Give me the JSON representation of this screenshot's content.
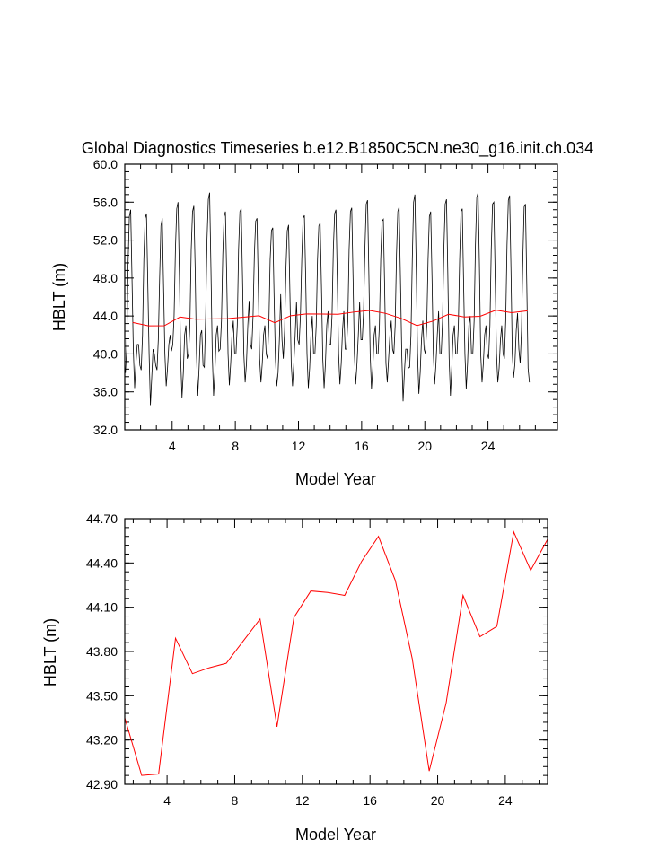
{
  "chart_data": [
    {
      "type": "line",
      "title": "Global Diagnostics Timeseries b.e12.B1850C5CN.ne30_g16.init.ch.034",
      "xlabel": "Model Year",
      "ylabel": "HBLT (m)",
      "xlim": [
        1,
        28.4
      ],
      "ylim": [
        32.0,
        60.0
      ],
      "xticks": [
        "4",
        "8",
        "12",
        "16",
        "20",
        "24"
      ],
      "xtick_values": [
        4,
        8,
        12,
        16,
        20,
        24
      ],
      "yticks": [
        "32.0",
        "36.0",
        "40.0",
        "44.0",
        "48.0",
        "52.0",
        "56.0",
        "60.0"
      ],
      "ytick_values": [
        32,
        36,
        40,
        44,
        48,
        52,
        56,
        60
      ],
      "grid": false,
      "series": [
        {
          "color": "#000000",
          "kind": "monthly",
          "start_year": 1.04,
          "step": 0.0833333,
          "values": [
            38.0,
            40.5,
            49.5,
            54.5,
            55.2,
            48.0,
            40.5,
            36.4,
            39.0,
            41.0,
            41.0,
            38.8,
            38.3,
            42.0,
            50.0,
            54.3,
            54.8,
            47.5,
            40.0,
            34.6,
            37.5,
            40.5,
            40.0,
            38.8,
            38.3,
            41.5,
            48.0,
            53.5,
            54.3,
            47.0,
            40.0,
            36.6,
            38.5,
            41.0,
            42.0,
            40.3,
            41.0,
            44.0,
            51.0,
            55.3,
            56.0,
            48.5,
            39.5,
            35.4,
            38.0,
            42.0,
            43.0,
            39.5,
            40.0,
            43.0,
            51.0,
            55.0,
            55.6,
            49.0,
            40.0,
            35.6,
            38.5,
            42.0,
            42.5,
            38.8,
            38.6,
            44.0,
            52.0,
            56.3,
            57.0,
            49.0,
            40.0,
            35.6,
            38.0,
            42.0,
            43.0,
            40.3,
            40.5,
            43.5,
            50.5,
            54.5,
            55.0,
            48.0,
            40.0,
            36.7,
            39.0,
            42.0,
            43.5,
            40.0,
            40.0,
            43.0,
            51.0,
            55.0,
            55.3,
            48.0,
            40.0,
            37.0,
            39.0,
            43.0,
            45.6,
            41.0,
            40.5,
            44.0,
            50.5,
            54.0,
            54.3,
            47.0,
            39.5,
            37.0,
            39.0,
            42.0,
            43.0,
            40.0,
            39.5,
            43.0,
            50.0,
            53.0,
            53.3,
            46.0,
            39.5,
            36.6,
            38.0,
            41.5,
            46.3,
            41.5,
            39.5,
            42.5,
            49.0,
            53.0,
            53.6,
            46.5,
            39.0,
            36.6,
            39.0,
            42.0,
            45.5,
            41.5,
            41.0,
            44.0,
            50.0,
            54.3,
            54.6,
            48.0,
            40.0,
            36.4,
            38.5,
            42.0,
            44.0,
            40.0,
            40.0,
            43.0,
            50.0,
            53.5,
            53.8,
            47.0,
            39.5,
            36.4,
            39.0,
            43.0,
            44.5,
            41.0,
            41.0,
            44.0,
            51.0,
            54.8,
            55.2,
            48.0,
            40.0,
            36.8,
            39.0,
            42.5,
            44.5,
            40.5,
            40.5,
            43.5,
            51.0,
            55.0,
            55.4,
            48.0,
            40.0,
            36.8,
            39.0,
            42.0,
            45.5,
            41.5,
            41.5,
            44.5,
            51.0,
            55.8,
            56.2,
            48.5,
            40.0,
            36.3,
            38.5,
            42.0,
            43.0,
            40.0,
            40.0,
            43.0,
            50.0,
            54.0,
            54.2,
            47.0,
            39.0,
            37.0,
            39.5,
            42.0,
            43.5,
            40.5,
            40.0,
            43.0,
            50.5,
            55.0,
            55.5,
            48.0,
            40.0,
            35.0,
            38.0,
            40.5,
            40.5,
            38.5,
            38.6,
            42.0,
            50.0,
            56.0,
            56.8,
            49.0,
            40.0,
            35.8,
            38.0,
            41.5,
            43.5,
            40.5,
            40.0,
            43.0,
            50.0,
            54.5,
            55.0,
            48.0,
            40.0,
            36.8,
            39.0,
            42.0,
            44.5,
            40.0,
            40.0,
            43.5,
            51.0,
            55.8,
            56.3,
            48.5,
            39.5,
            35.6,
            38.5,
            42.0,
            43.0,
            40.0,
            40.0,
            43.0,
            50.0,
            55.0,
            55.3,
            47.5,
            40.0,
            36.3,
            39.0,
            43.0,
            44.0,
            40.0,
            40.0,
            43.5,
            51.5,
            56.5,
            57.0,
            49.5,
            40.0,
            37.0,
            39.0,
            42.0,
            43.0,
            40.0,
            39.5,
            43.0,
            51.0,
            55.8,
            56.0,
            48.0,
            40.0,
            37.0,
            38.5,
            41.5,
            43.0,
            40.0,
            39.5,
            43.5,
            51.5,
            56.2,
            56.7,
            49.0,
            40.0,
            37.5,
            39.0,
            42.5,
            44.3,
            40.5,
            39.0,
            42.5,
            50.0,
            55.5,
            55.8,
            47.5,
            38.5,
            37.0
          ]
        },
        {
          "color": "#ff0000",
          "kind": "annual",
          "x": [
            1.5,
            2.5,
            3.5,
            4.5,
            5.5,
            6.5,
            7.5,
            8.5,
            9.5,
            10.5,
            11.5,
            12.5,
            13.5,
            14.5,
            15.5,
            16.5,
            17.5,
            18.5,
            19.5,
            20.5,
            21.5,
            22.5,
            23.5,
            24.5,
            25.5,
            26.5
          ],
          "values": [
            43.32,
            42.96,
            42.97,
            43.89,
            43.66,
            43.69,
            43.72,
            43.87,
            44.02,
            43.29,
            44.03,
            44.21,
            44.2,
            44.18,
            44.41,
            44.58,
            44.28,
            43.75,
            42.99,
            43.45,
            44.18,
            43.9,
            43.97,
            44.61,
            44.35,
            44.55
          ]
        }
      ]
    },
    {
      "type": "line",
      "title": "",
      "xlabel": "Model Year",
      "ylabel": "HBLT (m)",
      "xlim": [
        1.5,
        26.5
      ],
      "ylim": [
        42.9,
        44.7
      ],
      "xticks": [
        "4",
        "8",
        "12",
        "16",
        "20",
        "24"
      ],
      "xtick_values": [
        4,
        8,
        12,
        16,
        20,
        24
      ],
      "yticks": [
        "42.90",
        "43.20",
        "43.50",
        "43.80",
        "44.10",
        "44.40",
        "44.70"
      ],
      "ytick_values": [
        42.9,
        43.2,
        43.5,
        43.8,
        44.1,
        44.4,
        44.7
      ],
      "grid": false,
      "series": [
        {
          "color": "#ff0000",
          "x": [
            1.5,
            2.5,
            3.5,
            4.5,
            5.5,
            6.5,
            7.5,
            8.5,
            9.5,
            10.5,
            11.5,
            12.5,
            13.5,
            14.5,
            15.5,
            16.5,
            17.5,
            18.5,
            19.5,
            20.5,
            21.5,
            22.5,
            23.5,
            24.5,
            25.5,
            26.5
          ],
          "values": [
            43.35,
            42.96,
            42.97,
            43.89,
            43.65,
            43.69,
            43.72,
            43.87,
            44.02,
            43.29,
            44.03,
            44.21,
            44.2,
            44.18,
            44.41,
            44.58,
            44.28,
            43.75,
            42.99,
            43.45,
            44.18,
            43.9,
            43.97,
            44.61,
            44.35,
            44.56
          ]
        }
      ]
    }
  ]
}
